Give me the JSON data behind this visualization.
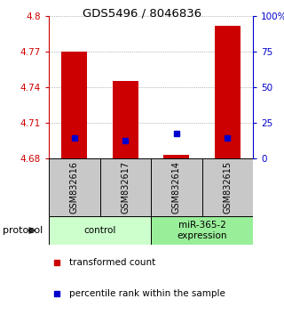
{
  "title": "GDS5496 / 8046836",
  "samples": [
    "GSM832616",
    "GSM832617",
    "GSM832614",
    "GSM832615"
  ],
  "groups": [
    {
      "label": "control",
      "color": "#ccffcc",
      "samples_idx": [
        0,
        1
      ]
    },
    {
      "label": "miR-365-2\nexpression",
      "color": "#99ee99",
      "samples_idx": [
        2,
        3
      ]
    }
  ],
  "red_values": [
    4.77,
    4.745,
    4.683,
    4.792
  ],
  "blue_values": [
    4.697,
    4.695,
    4.701,
    4.697
  ],
  "ymin": 4.68,
  "ymax": 4.8,
  "yticks_left": [
    4.68,
    4.71,
    4.74,
    4.77,
    4.8
  ],
  "yticks_left_labels": [
    "4.68",
    "4.71",
    "4.74",
    "4.77",
    "4.8"
  ],
  "yticks_right": [
    0,
    25,
    50,
    75,
    100
  ],
  "yticks_right_labels": [
    "0",
    "25",
    "50",
    "75",
    "100%"
  ],
  "left_axis_color": "#cc0000",
  "right_axis_color": "#0000cc",
  "bar_color": "#cc0000",
  "dot_color": "#0000cc",
  "protocol_label": "protocol",
  "legend": [
    {
      "color": "#cc0000",
      "label": "transformed count"
    },
    {
      "color": "#0000cc",
      "label": "percentile rank within the sample"
    }
  ],
  "fig_width": 3.2,
  "fig_height": 3.54,
  "dpi": 100
}
